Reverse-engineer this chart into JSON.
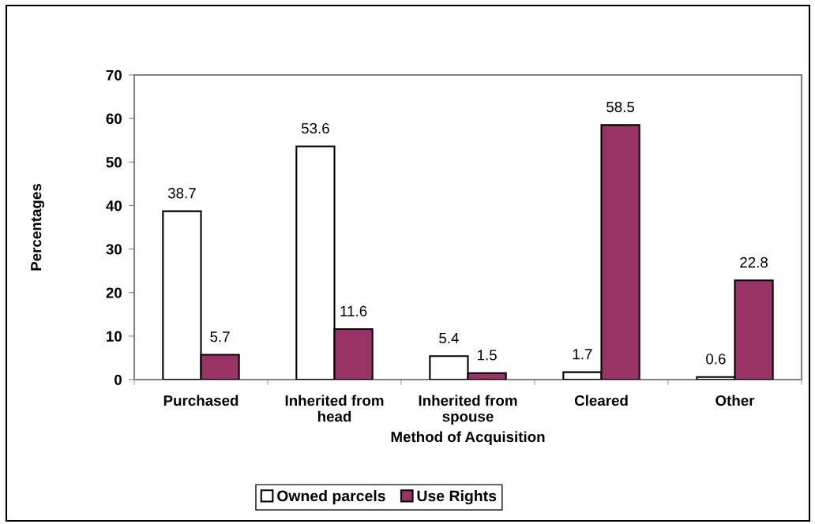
{
  "chart_data": {
    "type": "bar",
    "xlabel": "Method of Acquisition",
    "ylabel": "Percentages",
    "categories": [
      "Purchased",
      "Inherited from\nhead",
      "Inherited from\nspouse",
      "Cleared",
      "Other"
    ],
    "series": [
      {
        "name": "Owned parcels",
        "color": "#ffffff",
        "values": [
          38.7,
          53.6,
          5.4,
          1.7,
          0.6
        ]
      },
      {
        "name": "Use Rights",
        "color": "#993366",
        "values": [
          5.7,
          11.6,
          1.5,
          58.5,
          22.8
        ]
      }
    ],
    "ylim": [
      0,
      70
    ],
    "yticks": [
      0,
      10,
      20,
      30,
      40,
      50,
      60,
      70
    ],
    "data_labels": true,
    "grid": false,
    "legend": "bottom"
  }
}
